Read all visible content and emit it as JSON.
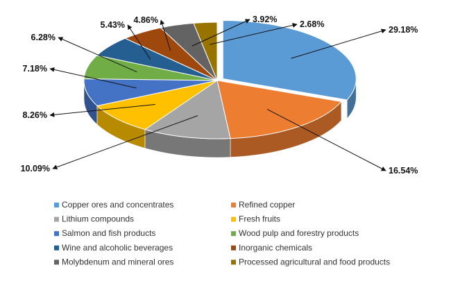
{
  "chart_data": {
    "type": "pie",
    "title": "",
    "legend_position": "bottom",
    "slices": [
      {
        "label": "Copper ores and concentrates",
        "value": 29.18,
        "value_text": "29.18%",
        "color": "#5B9BD5"
      },
      {
        "label": "Refined copper",
        "value": 16.54,
        "value_text": "16.54%",
        "color": "#ED7D31"
      },
      {
        "label": "Lithium compounds",
        "value": 10.09,
        "value_text": "10.09%",
        "color": "#A5A5A5"
      },
      {
        "label": "Fresh fruits",
        "value": 8.26,
        "value_text": "8.26%",
        "color": "#FFC000"
      },
      {
        "label": "Salmon and fish products",
        "value": 7.18,
        "value_text": "7.18%",
        "color": "#4472C4"
      },
      {
        "label": "Wood pulp and forestry products",
        "value": 6.28,
        "value_text": "6.28%",
        "color": "#70AD47"
      },
      {
        "label": "Wine and alcoholic beverages",
        "value": 5.43,
        "value_text": "5.43%",
        "color": "#255E91"
      },
      {
        "label": "Inorganic chemicals",
        "value": 4.86,
        "value_text": "4.86%",
        "color": "#9E480E"
      },
      {
        "label": "Molybdenum and mineral ores",
        "value": 3.92,
        "value_text": "3.92%",
        "color": "#636363"
      },
      {
        "label": "Processed agricultural and food products",
        "value": 2.68,
        "value_text": "2.68%",
        "color": "#997300"
      }
    ]
  }
}
